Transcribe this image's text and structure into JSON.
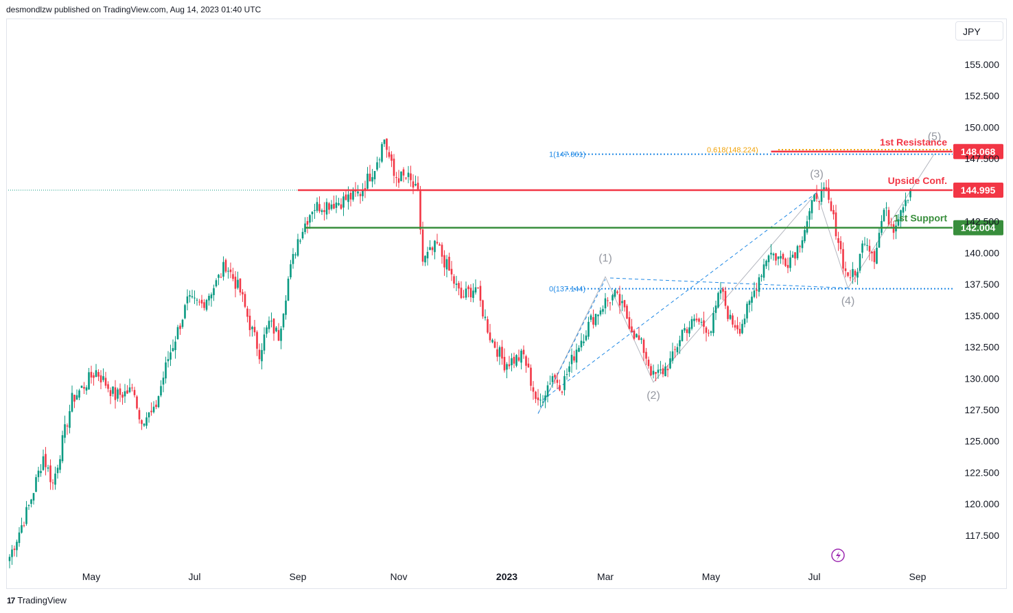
{
  "attribution": "desmondlzw published on TradingView.com, Aug 14, 2023 01:40 UTC",
  "currency": "JPY",
  "logo": {
    "mark": "17",
    "name": "TradingView"
  },
  "chart_data": {
    "type": "candlestick",
    "instrument_currency": "JPY",
    "y_ticks": [
      "155.000",
      "152.500",
      "150.000",
      "147.500",
      "142.500",
      "140.000",
      "137.500",
      "135.000",
      "132.500",
      "130.000",
      "127.500",
      "125.000",
      "122.500",
      "120.000",
      "117.500"
    ],
    "y_tick_values": [
      155,
      152.5,
      150,
      147.5,
      142.5,
      140,
      137.5,
      135,
      132.5,
      130,
      127.5,
      125,
      122.5,
      120,
      117.5
    ],
    "x_ticks": [
      "May",
      "Jul",
      "Sep",
      "Nov",
      "2023",
      "Mar",
      "May",
      "Jul",
      "Sep"
    ],
    "x_tick_index": [
      34,
      77,
      120,
      162,
      207,
      248,
      292,
      335,
      378
    ],
    "ylim": [
      115.2,
      158.5
    ],
    "up_color": "#089981",
    "down_color": "#f23645",
    "key_points": [
      [
        0,
        115.8
      ],
      [
        8,
        119.8
      ],
      [
        14,
        123.8
      ],
      [
        18,
        121.6
      ],
      [
        26,
        128.3
      ],
      [
        36,
        130.6
      ],
      [
        44,
        128.6
      ],
      [
        52,
        129.1
      ],
      [
        54,
        126.8
      ],
      [
        60,
        127.2
      ],
      [
        66,
        131.6
      ],
      [
        70,
        133.8
      ],
      [
        74,
        136.1
      ],
      [
        80,
        135.9
      ],
      [
        86,
        137.6
      ],
      [
        90,
        139.1
      ],
      [
        96,
        136.9
      ],
      [
        100,
        134.3
      ],
      [
        104,
        132.1
      ],
      [
        108,
        134.4
      ],
      [
        112,
        133.4
      ],
      [
        116,
        137.9
      ],
      [
        120,
        141.1
      ],
      [
        126,
        143.6
      ],
      [
        132,
        143.9
      ],
      [
        138,
        144.1
      ],
      [
        146,
        144.8
      ],
      [
        152,
        146.9
      ],
      [
        156,
        149.1
      ],
      [
        160,
        146.1
      ],
      [
        166,
        145.9
      ],
      [
        170,
        144.6
      ],
      [
        172,
        139.3
      ],
      [
        178,
        140.6
      ],
      [
        184,
        138.1
      ],
      [
        188,
        136.4
      ],
      [
        194,
        137.3
      ],
      [
        200,
        133.4
      ],
      [
        206,
        131.2
      ],
      [
        214,
        131.8
      ],
      [
        220,
        127.8
      ],
      [
        226,
        130.3
      ],
      [
        230,
        129.4
      ],
      [
        236,
        132.4
      ],
      [
        242,
        134.6
      ],
      [
        248,
        136.1
      ],
      [
        252,
        136.6
      ],
      [
        256,
        135.3
      ],
      [
        260,
        133.6
      ],
      [
        264,
        132.3
      ],
      [
        268,
        130.1
      ],
      [
        272,
        130.6
      ],
      [
        276,
        131.6
      ],
      [
        280,
        133.8
      ],
      [
        286,
        134.6
      ],
      [
        292,
        133.9
      ],
      [
        296,
        137.1
      ],
      [
        300,
        134.6
      ],
      [
        304,
        134.1
      ],
      [
        308,
        135.8
      ],
      [
        312,
        138.1
      ],
      [
        316,
        140.1
      ],
      [
        320,
        139.6
      ],
      [
        324,
        139.4
      ],
      [
        328,
        140.4
      ],
      [
        332,
        142.6
      ],
      [
        336,
        144.7
      ],
      [
        340,
        144.6
      ],
      [
        344,
        141.9
      ],
      [
        348,
        138.4
      ],
      [
        352,
        138.1
      ],
      [
        356,
        141.3
      ],
      [
        360,
        139.8
      ],
      [
        364,
        143.4
      ],
      [
        368,
        142.1
      ],
      [
        372,
        144.1
      ],
      [
        375,
        145.0
      ]
    ],
    "horizontal_levels": [
      {
        "name": "1st Resistance",
        "value": 148.068,
        "label": "148.068",
        "color": "#f23645"
      },
      {
        "name": "Upside Conf.",
        "value": 144.995,
        "label": "144.995",
        "color": "#f23645"
      },
      {
        "name": "1st Support",
        "value": 142.004,
        "label": "142.004",
        "color": "#388e3c"
      }
    ],
    "fibonacci": [
      {
        "label": "0.618(148.224)",
        "value": 148.224,
        "color": "#f0a30a"
      },
      {
        "label": "1(147.861)",
        "value": 147.861,
        "color": "#1e88e5"
      },
      {
        "label": "0(137.144)",
        "value": 137.144,
        "color": "#1e88e5"
      }
    ],
    "waves": [
      {
        "label": "(1)",
        "index": 248,
        "value": 138.1
      },
      {
        "label": "(2)",
        "index": 268,
        "value": 129.7
      },
      {
        "label": "(3)",
        "index": 336,
        "value": 144.8
      },
      {
        "label": "(4)",
        "index": 349,
        "value": 137.2
      },
      {
        "label": "(5)",
        "index": 385,
        "value": 147.9
      }
    ],
    "last_price_dotted": 144.995
  },
  "levels_text": {
    "resistance": "1st Resistance",
    "upside": "Upside Conf.",
    "support": "1st Support"
  }
}
